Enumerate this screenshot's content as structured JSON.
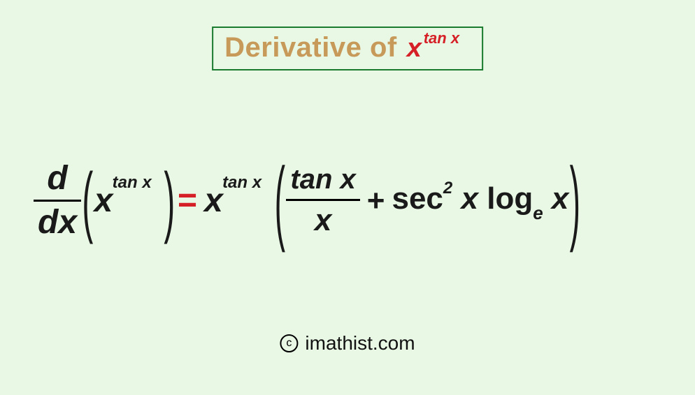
{
  "background_color": "#e8f8e4",
  "title": {
    "label": "Derivative of",
    "label_color": "#c79a5a",
    "expr_base": "x",
    "expr_exp": "tan x",
    "expr_color": "#d62027",
    "border_color": "#1a7a2e",
    "title_fontsize": 40,
    "expr_fontsize": 38,
    "exp_fontsize": 22
  },
  "formula": {
    "lhs": {
      "ddx_num": "d",
      "ddx_den": "dx",
      "arg_base": "x",
      "arg_exp": "tan x"
    },
    "equals": "=",
    "equals_color": "#d62027",
    "rhs": {
      "lead_base": "x",
      "lead_exp": "tan x",
      "frac_num": "tan x",
      "frac_den": "x",
      "plus": "+",
      "sec_label": "sec",
      "sec_power": "2",
      "sec_arg": "x",
      "log_label": "log",
      "log_base": "e",
      "log_arg": "x"
    },
    "text_color": "#000000",
    "main_fontsize": 48,
    "exp_fontsize": 24,
    "paren_style": "tall"
  },
  "attribution": {
    "symbol": "c",
    "text": "imathist.com",
    "fontsize": 28
  }
}
